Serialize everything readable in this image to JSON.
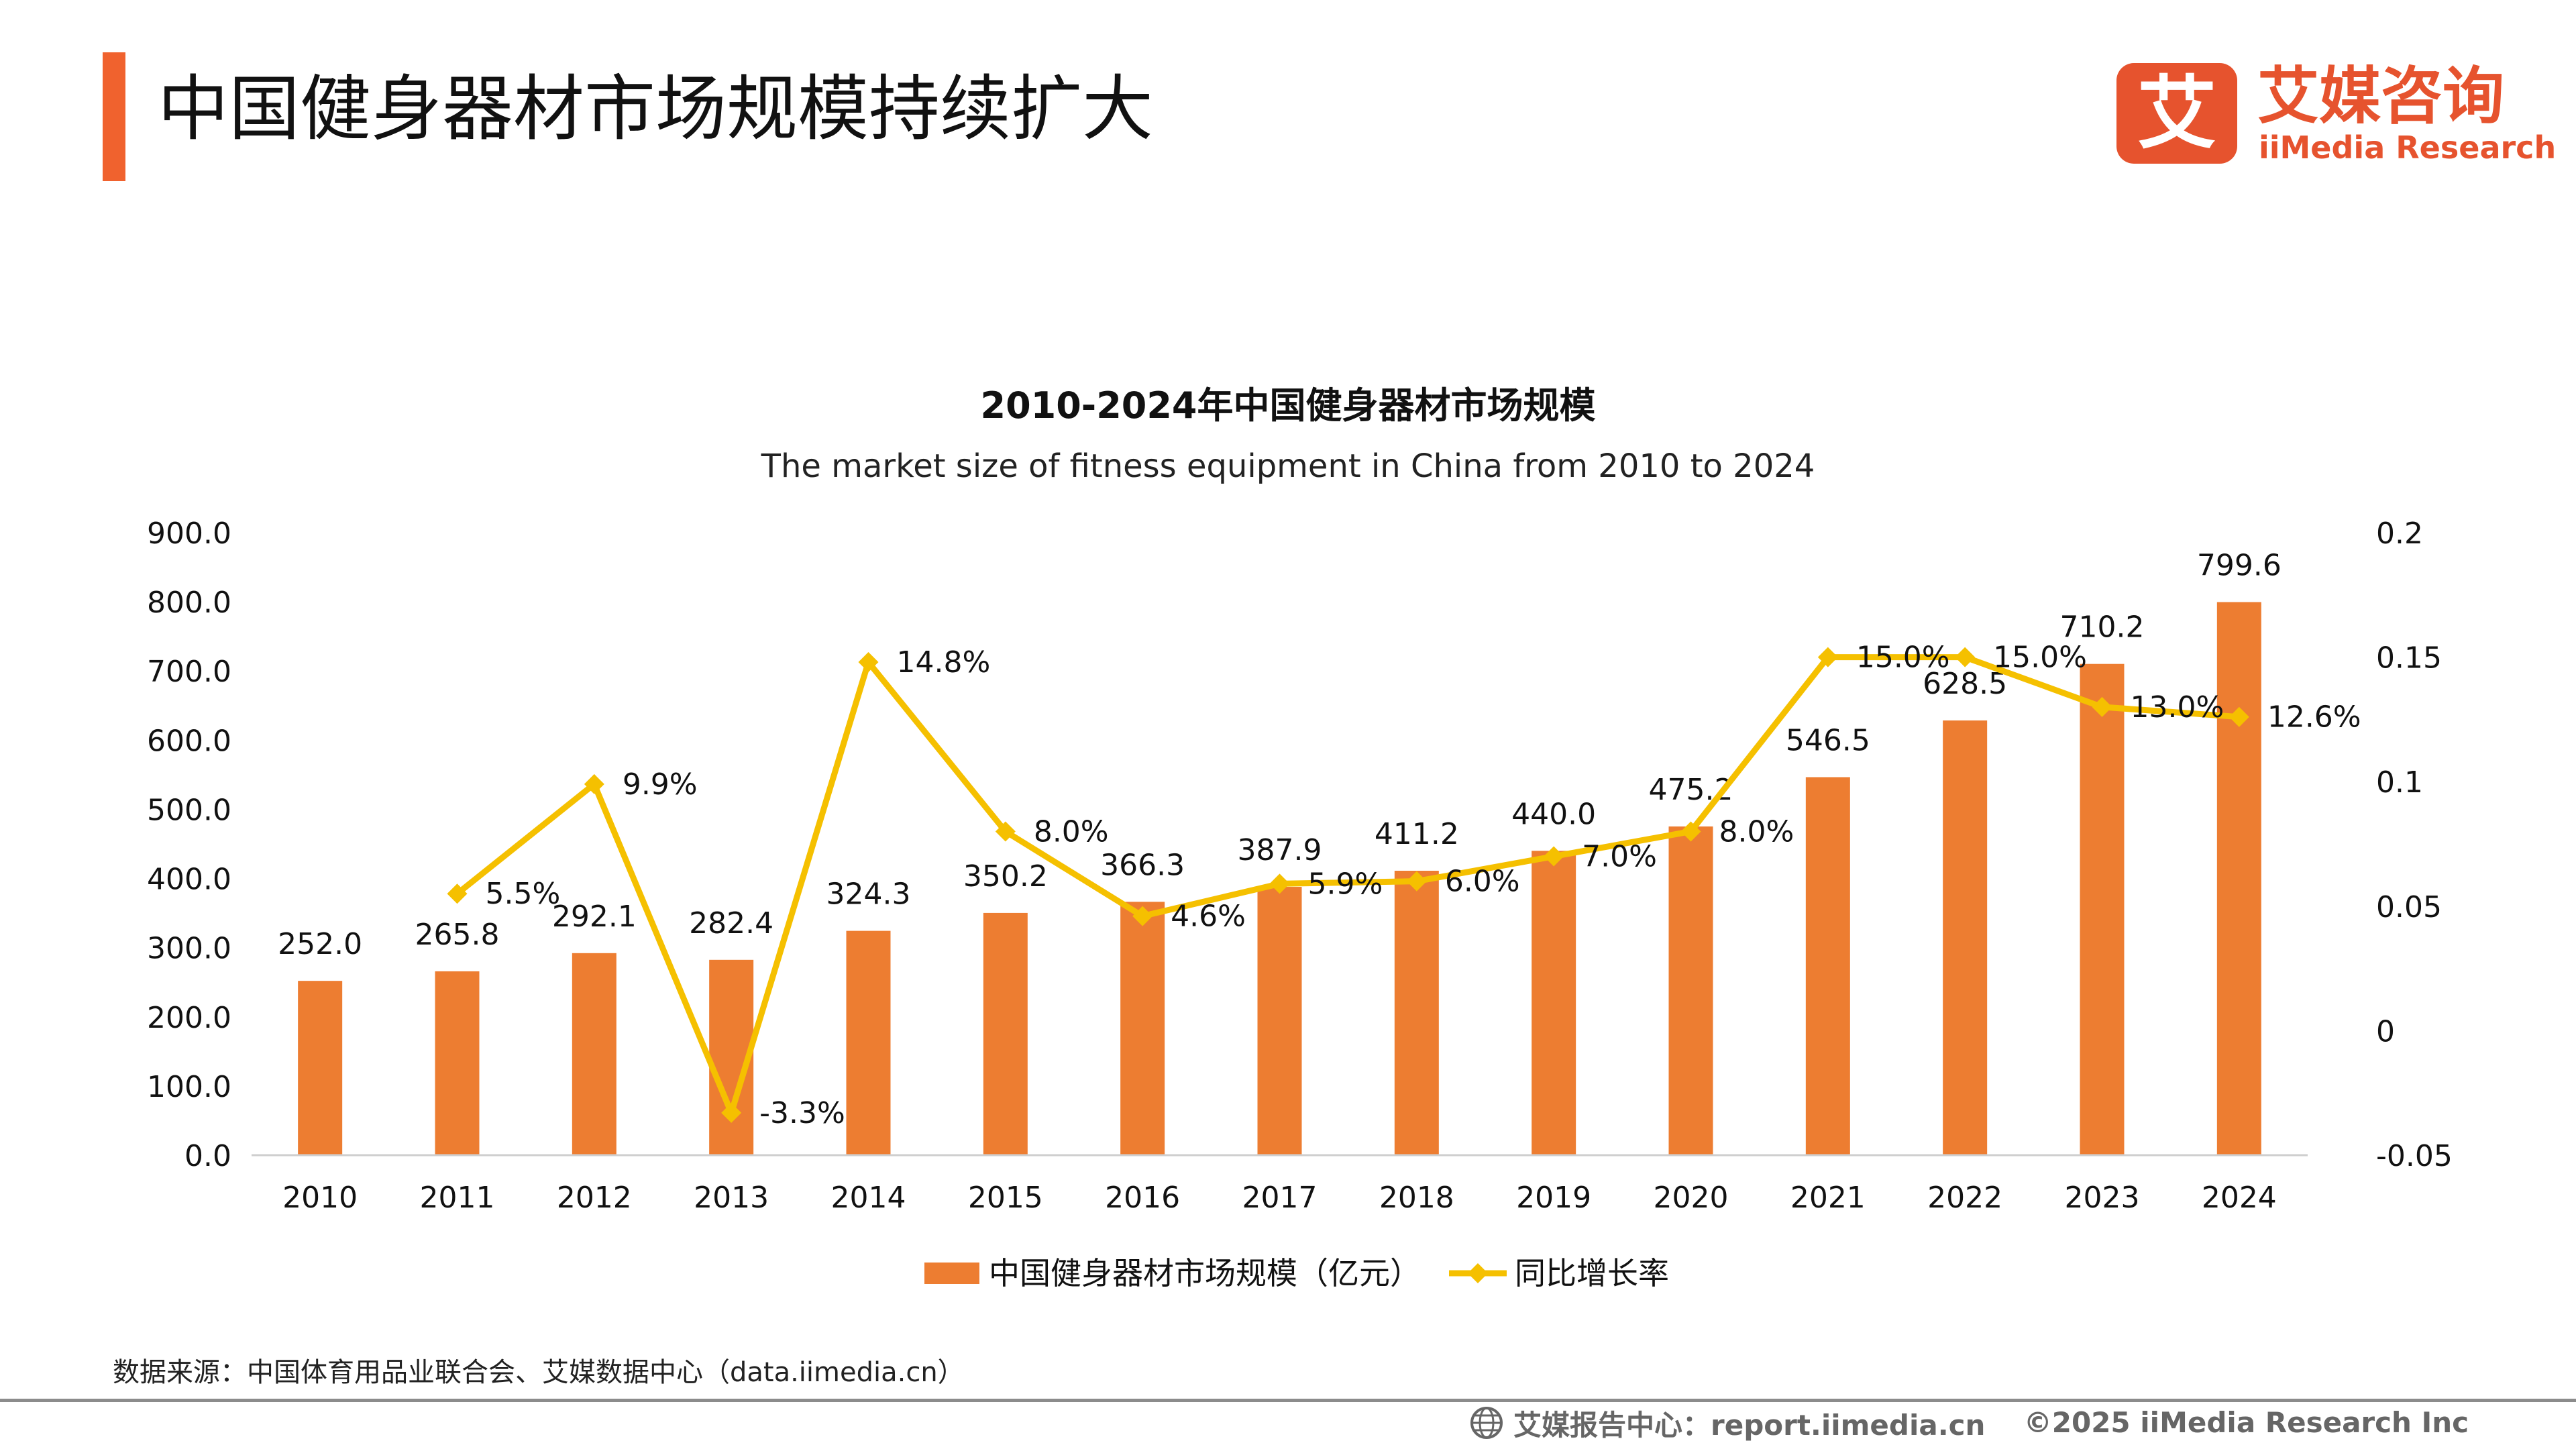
{
  "header": {
    "title": "中国健身器材市场规模持续扩大",
    "accent_color": "#f0622e"
  },
  "logo": {
    "glyph": "艾",
    "name_cn": "艾媒咨询",
    "name_en": "iiMedia Research",
    "color": "#e6532e"
  },
  "chart_data": {
    "type": "bar",
    "title": "2010-2024年中国健身器材市场规模",
    "subtitle": "The market size of fitness equipment in China from 2010 to 2024",
    "categories": [
      "2010",
      "2011",
      "2012",
      "2013",
      "2014",
      "2015",
      "2016",
      "2017",
      "2018",
      "2019",
      "2020",
      "2021",
      "2022",
      "2023",
      "2024"
    ],
    "series": [
      {
        "name": "中国健身器材市场规模（亿元）",
        "type": "bar",
        "axis": "left",
        "color": "#ed7d31",
        "values": [
          252.0,
          265.8,
          292.1,
          282.4,
          324.3,
          350.2,
          366.3,
          387.9,
          411.2,
          440.0,
          475.2,
          546.5,
          628.5,
          710.2,
          799.6
        ],
        "labels": [
          "252.0",
          "265.8",
          "292.1",
          "282.4",
          "324.3",
          "350.2",
          "366.3",
          "387.9",
          "411.2",
          "440.0",
          "475.2",
          "546.5",
          "628.5",
          "710.2",
          "799.6"
        ]
      },
      {
        "name": "同比增长率",
        "type": "line",
        "axis": "right",
        "color": "#f5c000",
        "values": [
          null,
          0.055,
          0.099,
          -0.033,
          0.148,
          0.08,
          0.046,
          0.059,
          0.06,
          0.07,
          0.08,
          0.15,
          0.15,
          0.13,
          0.126
        ],
        "labels": [
          "",
          "5.5%",
          "9.9%",
          "-3.3%",
          "14.8%",
          "8.0%",
          "4.6%",
          "5.9%",
          "6.0%",
          "7.0%",
          "8.0%",
          "15.0%",
          "15.0%",
          "13.0%",
          "12.6%"
        ]
      }
    ],
    "y_left": {
      "min": 0,
      "max": 900,
      "ticks": [
        "0.0",
        "100.0",
        "200.0",
        "300.0",
        "400.0",
        "500.0",
        "600.0",
        "700.0",
        "800.0",
        "900.0"
      ]
    },
    "y_right": {
      "min": -0.05,
      "max": 0.2,
      "ticks": [
        "-0.05",
        "0",
        "0.05",
        "0.1",
        "0.15",
        "0.2"
      ]
    },
    "legend_position": "bottom",
    "grid": false
  },
  "source": "数据来源：中国体育用品业联合会、艾媒数据中心（data.iimedia.cn）",
  "footer": {
    "center": "艾媒报告中心：report.iimedia.cn",
    "right": "©2025  iiMedia Research  Inc"
  }
}
